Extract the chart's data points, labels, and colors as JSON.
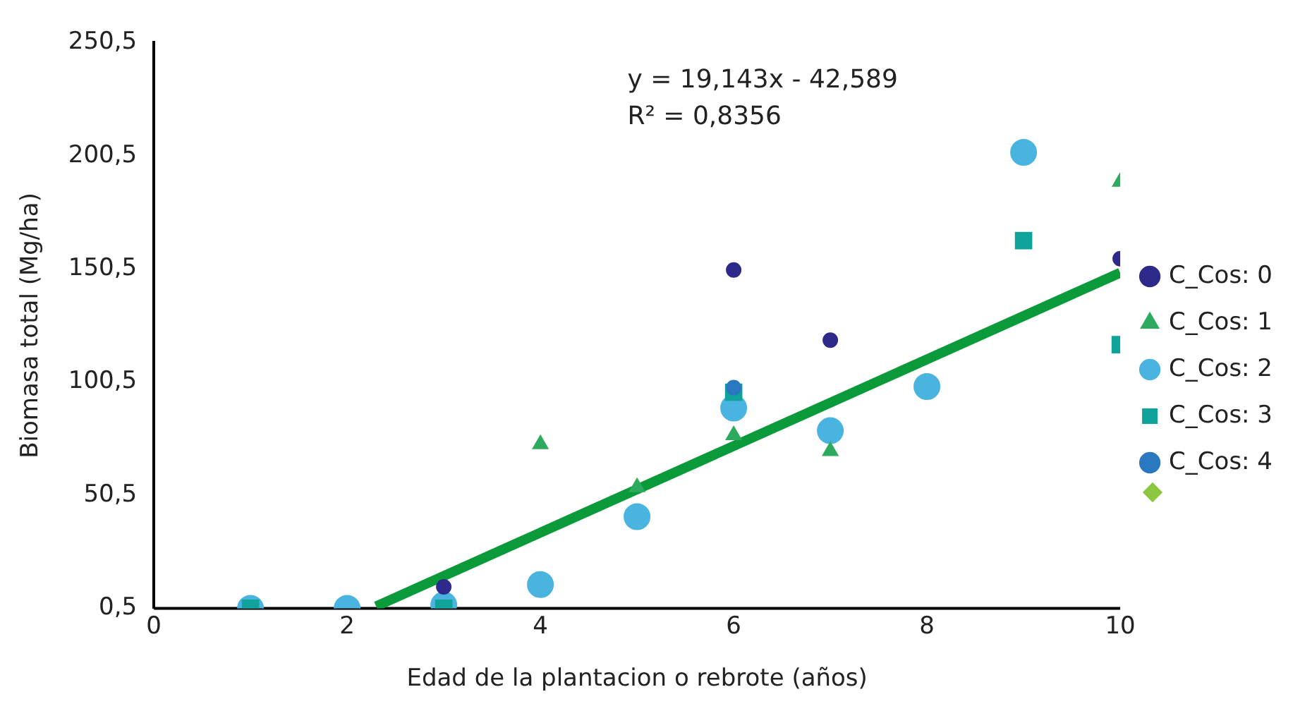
{
  "chart_data": {
    "type": "scatter",
    "xlabel": "Edad de la plantacion o rebrote (años)",
    "ylabel": "Biomasa total (Mg/ha)",
    "xlim": [
      0,
      10
    ],
    "xticks": [
      0,
      2,
      4,
      6,
      8,
      10
    ],
    "ylim": [
      0.5,
      250.5
    ],
    "yticks": [
      {
        "value": 0.5,
        "label": "0,5"
      },
      {
        "value": 50.5,
        "label": "50,5"
      },
      {
        "value": 100.5,
        "label": "100,5"
      },
      {
        "value": 150.5,
        "label": "150,5"
      },
      {
        "value": 200.5,
        "label": "200,5"
      },
      {
        "value": 250.5,
        "label": "250,5"
      }
    ],
    "grid": false,
    "legend": "right",
    "annotations": [
      "y = 19,143x - 42,589",
      "R² = 0,8356"
    ],
    "series": [
      {
        "name": "C_Cos: 0",
        "color": "#2e2a8a",
        "marker": "circle",
        "x": [
          3,
          6,
          7,
          10
        ],
        "values": [
          10,
          150,
          119,
          155
        ]
      },
      {
        "name": "C_Cos: 1",
        "color": "#2eaa5e",
        "marker": "triangle",
        "x": [
          4,
          5,
          6,
          7,
          10
        ],
        "values": [
          73,
          54,
          77,
          70,
          189
        ]
      },
      {
        "name": "C_Cos: 2",
        "color": "#4ab4e0",
        "marker": "circle",
        "x": [
          1,
          2,
          3,
          4,
          5,
          6,
          7,
          8,
          9
        ],
        "values": [
          0.5,
          0.5,
          2,
          11,
          41,
          89,
          79,
          98.5,
          202
        ]
      },
      {
        "name": "C_Cos: 3",
        "color": "#10a39a",
        "marker": "square",
        "x": [
          1,
          3,
          6,
          9,
          10
        ],
        "values": [
          0.5,
          0.5,
          96,
          163,
          117
        ]
      },
      {
        "name": "C_Cos: 4",
        "color": "#2a78c0",
        "marker": "circle",
        "x": [
          6
        ],
        "values": [
          98
        ]
      },
      {
        "type": "line",
        "color": "#0a9a3a",
        "marker": "none",
        "line_style": "solid",
        "x": [
          2.3,
          10
        ],
        "values": [
          1.4,
          148.8
        ]
      }
    ]
  }
}
